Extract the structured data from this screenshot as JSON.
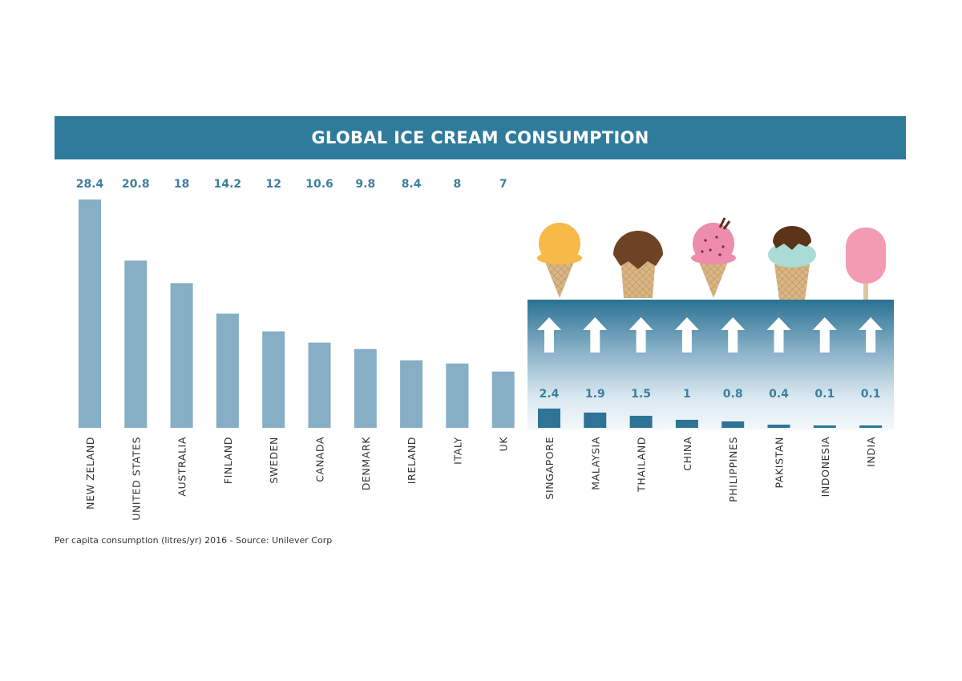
{
  "chart_data": {
    "type": "bar",
    "title": "GLOBAL ICE CREAM CONSUMPTION",
    "categories": [
      "NEW ZELAND",
      "UNITED STATES",
      "AUSTRALIA",
      "FINLAND",
      "SWEDEN",
      "CANADA",
      "DENMARK",
      "IRELAND",
      "ITALY",
      "UK",
      "SINGAPORE",
      "MALAYSIA",
      "THAILAND",
      "CHINA",
      "PHILIPPINES",
      "PAKISTAN",
      "INDONESIA",
      "INDIA"
    ],
    "values": [
      28.4,
      20.8,
      18,
      14.2,
      12,
      10.6,
      9.8,
      8.4,
      8,
      7,
      2.4,
      1.9,
      1.5,
      1,
      0.8,
      0.4,
      0.1,
      0.1
    ],
    "value_labels": [
      "28.4",
      "20.8",
      "18",
      "14.2",
      "12",
      "10.6",
      "9.8",
      "8.4",
      "8",
      "7",
      "2.4",
      "1.9",
      "1.5",
      "1",
      "0.8",
      "0.4",
      "0.1",
      "0.1"
    ],
    "highlight_group": [
      "SINGAPORE",
      "MALAYSIA",
      "THAILAND",
      "CHINA",
      "PHILIPPINES",
      "PAKISTAN",
      "INDONESIA",
      "INDIA"
    ],
    "ylim": [
      0,
      28.4
    ],
    "grid": false,
    "note": "Per capita consumption (litres/yr)  2016 - Source: Unilever Corp",
    "colors": {
      "title_bar": "#2f7b9c",
      "bar": "#86aec4",
      "highlight_bar": "#2d7497",
      "value_label": "#3c7fa0"
    },
    "icons": [
      "ice-cream-cone-vanilla-icon",
      "ice-cream-cone-chocolate-icon",
      "ice-cream-cone-strawberry-icon",
      "ice-cream-cone-mint-icon",
      "popsicle-icon",
      "up-arrow-icon"
    ]
  }
}
